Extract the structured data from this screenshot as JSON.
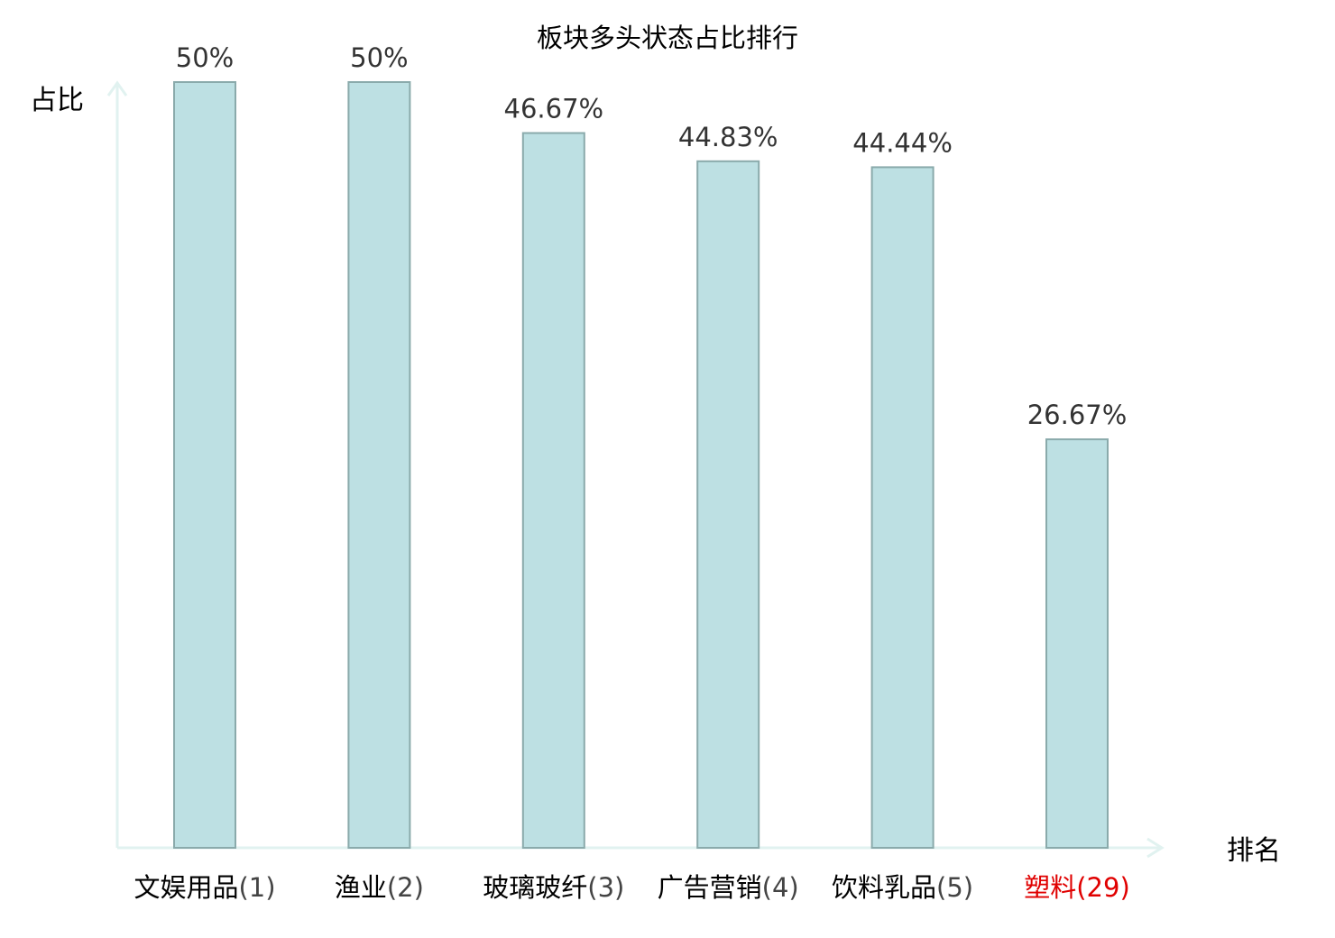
{
  "chart_data": {
    "type": "bar",
    "title": "板块多头状态占比排行",
    "ylabel": "占比",
    "xlabel": "排名",
    "ylim": [
      0,
      50
    ],
    "grid": false,
    "categories": [
      {
        "name": "文娱用品",
        "rank": "(1)",
        "highlight": false
      },
      {
        "name": "渔业",
        "rank": "(2)",
        "highlight": false
      },
      {
        "name": "玻璃玻纤",
        "rank": "(3)",
        "highlight": false
      },
      {
        "name": "广告营销",
        "rank": "(4)",
        "highlight": false
      },
      {
        "name": "饮料乳品",
        "rank": "(5)",
        "highlight": false
      },
      {
        "name": "塑料",
        "rank": "(29)",
        "highlight": true
      }
    ],
    "values": [
      50,
      50,
      46.67,
      44.83,
      44.44,
      26.67
    ],
    "value_labels": [
      "50%",
      "50%",
      "46.67%",
      "44.83%",
      "44.44%",
      "26.67%"
    ]
  },
  "colors": {
    "bar_fill": "#bde0e3",
    "bar_stroke": "#8aaaab",
    "axis": "#e1f2f0",
    "label_text": "#333333",
    "category_text": "#000000",
    "rank_text": "#444444",
    "highlight": "#e00000"
  }
}
